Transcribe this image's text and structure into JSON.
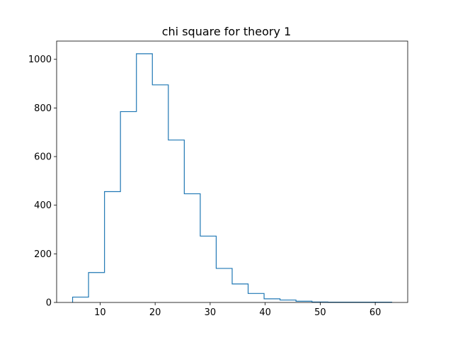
{
  "chart_data": {
    "type": "bar",
    "histtype": "step",
    "title": "chi square for theory 1",
    "xlabel": "",
    "ylabel": "",
    "color": "#1f77b4",
    "xlim": [
      2.1,
      65.9
    ],
    "ylim": [
      0,
      1075
    ],
    "bin_edges": [
      5.0,
      7.9,
      10.8,
      13.7,
      16.6,
      19.5,
      22.4,
      25.3,
      28.2,
      31.1,
      34.0,
      36.9,
      39.8,
      42.7,
      45.6,
      48.5,
      51.4,
      54.3,
      57.2,
      60.1,
      63.0
    ],
    "counts": [
      22,
      123,
      456,
      785,
      1023,
      895,
      668,
      447,
      273,
      140,
      76,
      37,
      15,
      10,
      5,
      2,
      1,
      1,
      1,
      1
    ],
    "xticks": [
      10,
      20,
      30,
      40,
      50,
      60
    ],
    "yticks": [
      0,
      200,
      400,
      600,
      800,
      1000
    ]
  }
}
